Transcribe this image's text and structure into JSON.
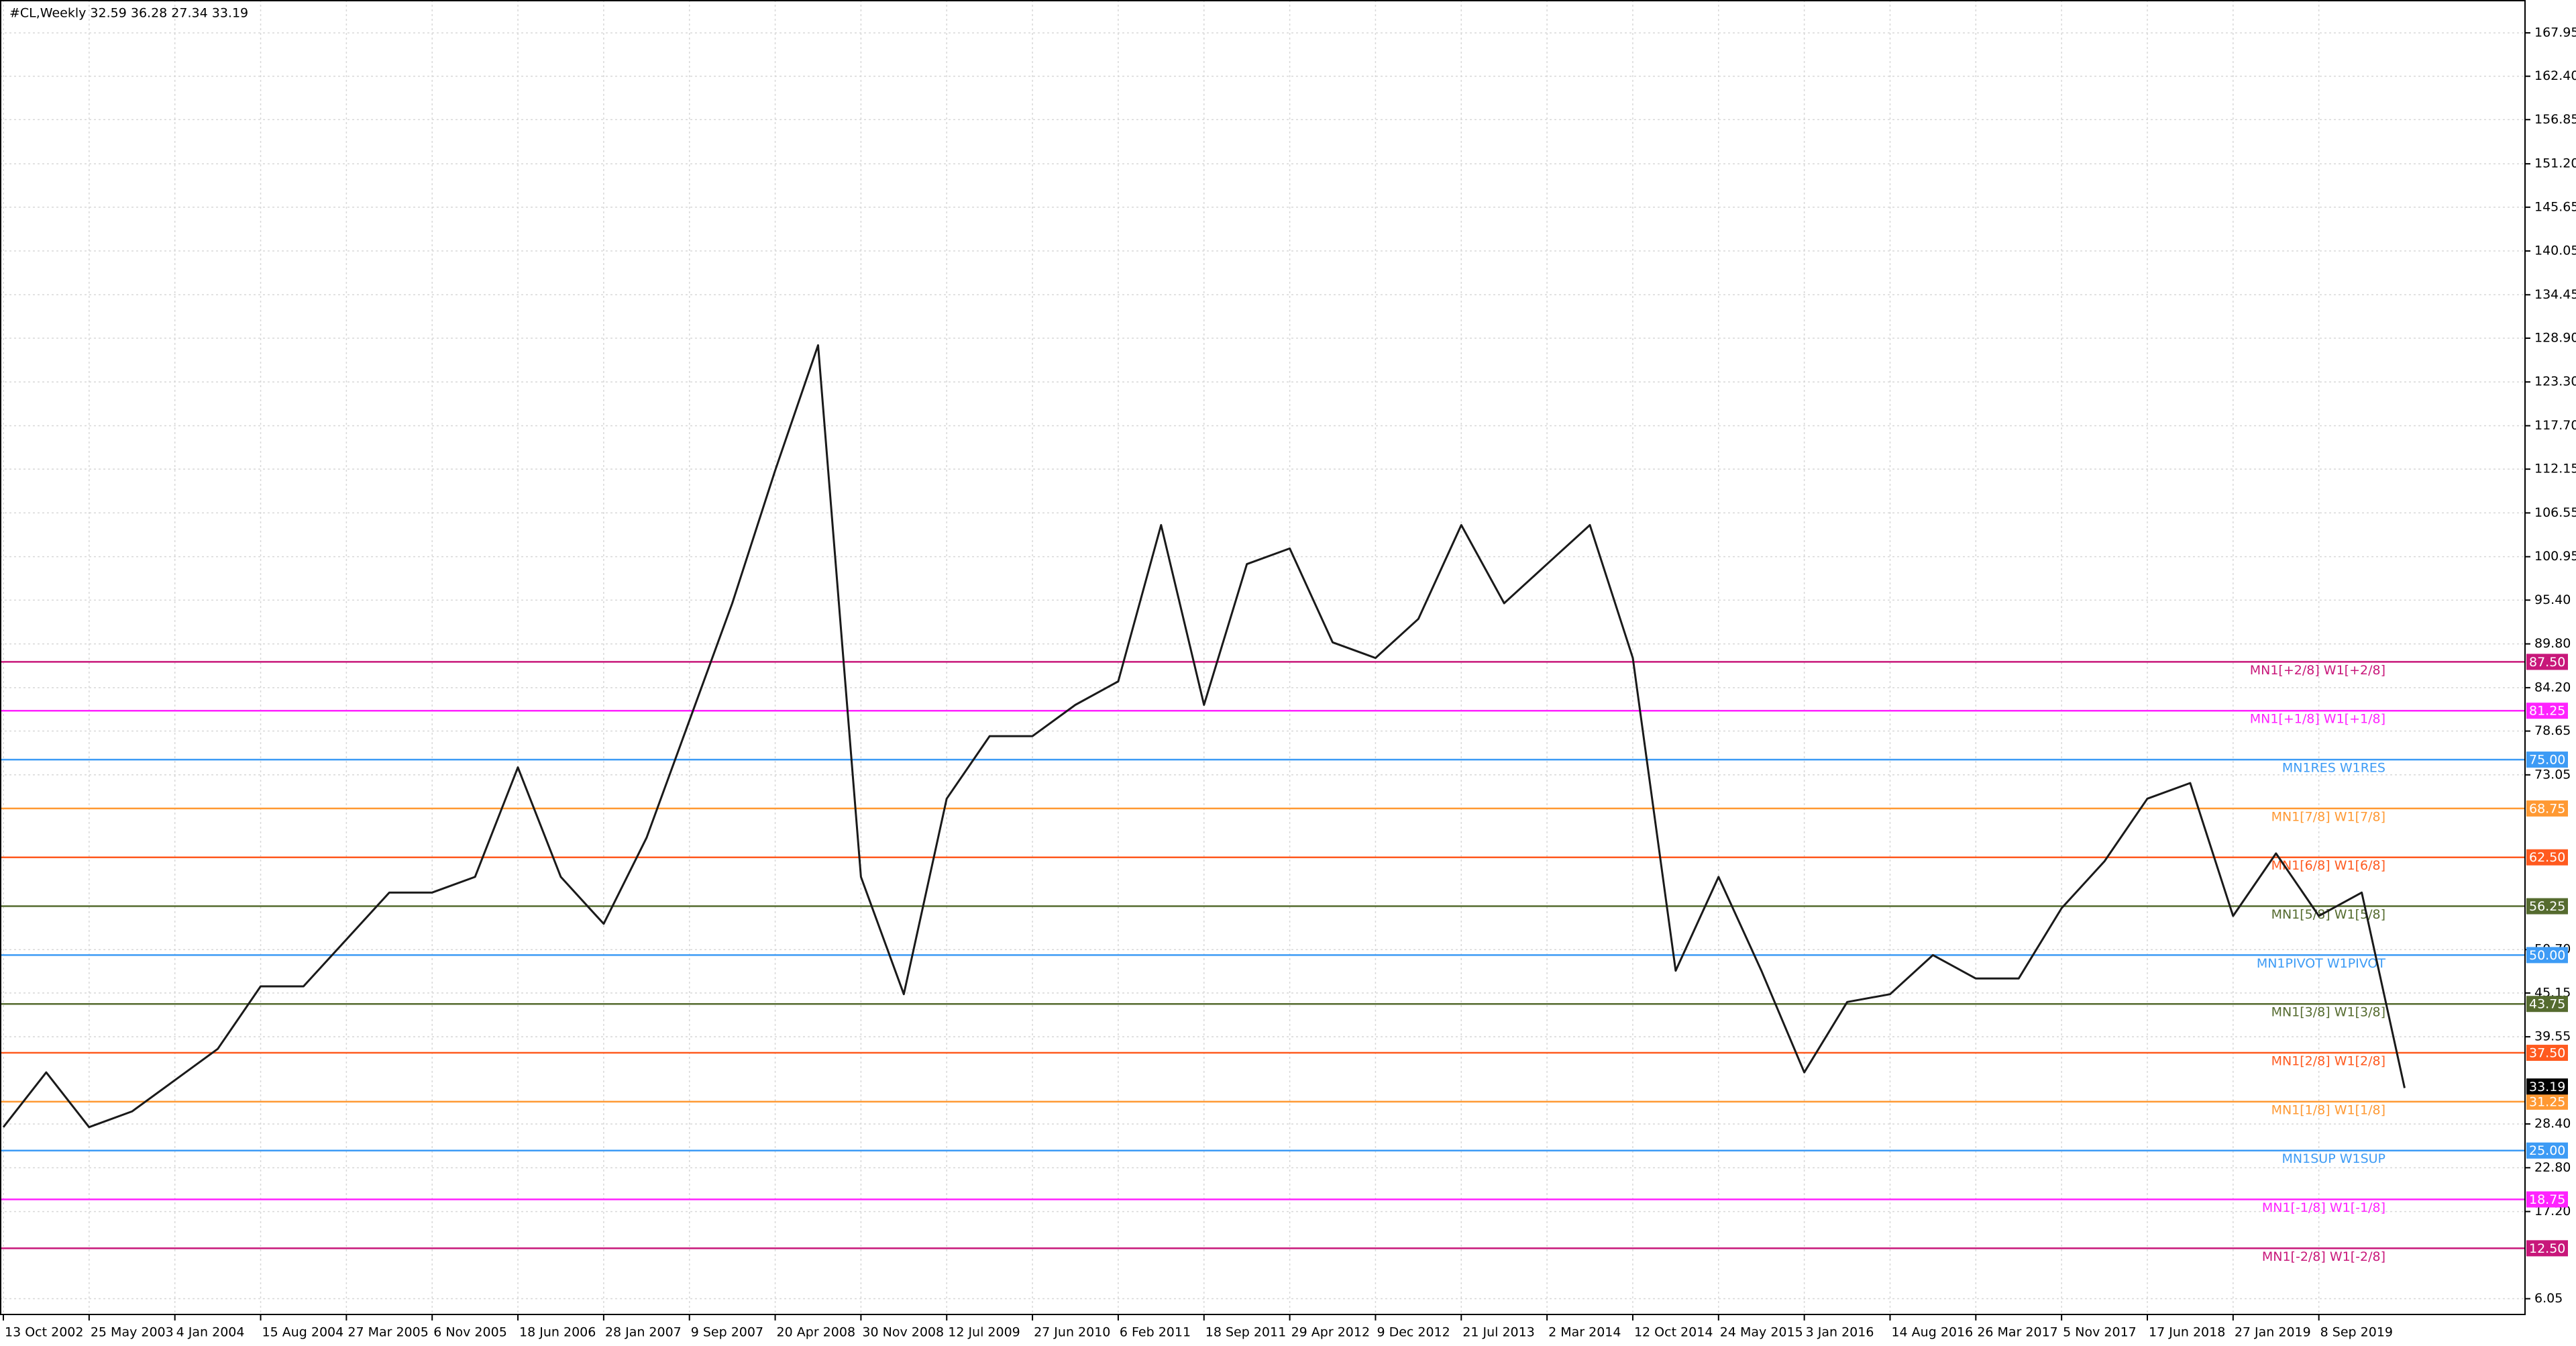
{
  "chart_data": {
    "type": "line",
    "title": "#CL,Weekly  32.59 36.28 27.34 33.19",
    "categories": [
      "13 Oct 2002",
      null,
      "25 May 2003",
      null,
      "4 Jan 2004",
      null,
      "15 Aug 2004",
      null,
      "27 Mar 2005",
      null,
      "6 Nov 2005",
      null,
      "18 Jun 2006",
      null,
      "28 Jan 2007",
      null,
      "9 Sep 2007",
      null,
      "20 Apr 2008",
      null,
      "30 Nov 2008",
      null,
      "12 Jul 2009",
      null,
      "27 Jun 2010",
      null,
      "6 Feb 2011",
      null,
      "18 Sep 2011",
      null,
      "29 Apr 2012",
      null,
      "9 Dec 2012",
      null,
      "21 Jul 2013",
      null,
      "2 Mar 2014",
      null,
      "12 Oct 2014",
      null,
      "24 May 2015",
      null,
      "3 Jan 2016",
      null,
      "14 Aug 2016",
      null,
      "26 Mar 2017",
      null,
      "5 Nov 2017",
      null,
      "17 Jun 2018",
      null,
      "27 Jan 2019",
      null,
      "8 Sep 2019",
      null,
      null
    ],
    "series": [
      {
        "name": "#CL",
        "color": "#1a1a1a",
        "values": [
          28,
          35,
          28,
          30,
          34,
          38,
          46,
          46,
          52,
          58,
          58,
          60,
          74,
          60,
          54,
          65,
          80,
          95,
          112,
          128,
          60,
          45,
          70,
          78,
          78,
          82,
          85,
          105,
          82,
          100,
          102,
          90,
          88,
          93,
          105,
          95,
          100,
          105,
          88,
          48,
          60,
          48,
          35,
          44,
          45,
          50,
          47,
          47,
          56,
          62,
          70,
          72,
          55,
          63,
          55,
          58,
          33
        ]
      }
    ],
    "ylim": [
      3.95,
      172.15
    ],
    "yticks": [
      167.95,
      {
        "value": 162.4,
        "label": "162.40"
      },
      156.85,
      {
        "value": 151.2,
        "label": "151.20"
      },
      145.65,
      140.05,
      134.45,
      {
        "value": 128.9,
        "label": "128.90"
      },
      {
        "value": 123.3,
        "label": "123.30"
      },
      {
        "value": 117.7,
        "label": "117.70"
      },
      112.15,
      106.55,
      100.95,
      {
        "value": 95.4,
        "label": "95.40"
      },
      {
        "value": 89.8,
        "label": "89.80"
      },
      {
        "value": 84.2,
        "label": "84.20"
      },
      78.65,
      73.05,
      {
        "value": 50.7,
        "label": "50.70"
      },
      45.15,
      39.55,
      {
        "value": 28.4,
        "label": "28.40"
      },
      {
        "value": 22.8,
        "label": "22.80"
      },
      {
        "value": 17.2,
        "label": "17.20"
      },
      6.05
    ],
    "grid": true,
    "last_price": 33.19,
    "levels": [
      {
        "name": "MN1[+2/8] W1[+2/8]",
        "price": {
          "value": 87.5,
          "label": "87.50"
        },
        "color": "#c8177a"
      },
      {
        "name": "MN1[+1/8] W1[+1/8]",
        "price": {
          "value": 81.25,
          "label": "81.25"
        },
        "color": "#ff22ff"
      },
      {
        "name": "MN1RES W1RES",
        "price": {
          "value": 75,
          "label": "75.00"
        },
        "color": "#3d9bf5"
      },
      {
        "name": "MN1[7/8] W1[7/8]",
        "price": {
          "value": 68.75,
          "label": "68.75"
        },
        "color": "#ff9933"
      },
      {
        "name": "MN1[6/8] W1[6/8]",
        "price": {
          "value": 62.5,
          "label": "62.50"
        },
        "color": "#ff5a1f"
      },
      {
        "name": "MN1[5/8] W1[5/8]",
        "price": {
          "value": 56.25,
          "label": "56.25"
        },
        "color": "#556b2f"
      },
      {
        "name": "MN1PIVOT W1PIVOT",
        "price": {
          "value": 50,
          "label": "50.00"
        },
        "color": "#3d9bf5"
      },
      {
        "name": "MN1[3/8] W1[3/8]",
        "price": {
          "value": 43.75,
          "label": "43.75"
        },
        "color": "#556b2f"
      },
      {
        "name": "MN1[2/8] W1[2/8]",
        "price": {
          "value": 37.5,
          "label": "37.50"
        },
        "color": "#ff5a1f"
      },
      {
        "name": "MN1[1/8] W1[1/8]",
        "price": {
          "value": 31.25,
          "label": "31.25"
        },
        "color": "#ff9933"
      },
      {
        "name": "MN1SUP W1SUP",
        "price": {
          "value": 25,
          "label": "25.00"
        },
        "color": "#3d9bf5"
      },
      {
        "name": "MN1[-1/8] W1[-1/8]",
        "price": {
          "value": 18.75,
          "label": "18.75"
        },
        "color": "#ff22ff"
      },
      {
        "name": "MN1[-2/8] W1[-2/8]",
        "price": {
          "value": 12.5,
          "label": "12.50"
        },
        "color": "#c8177a"
      }
    ]
  }
}
